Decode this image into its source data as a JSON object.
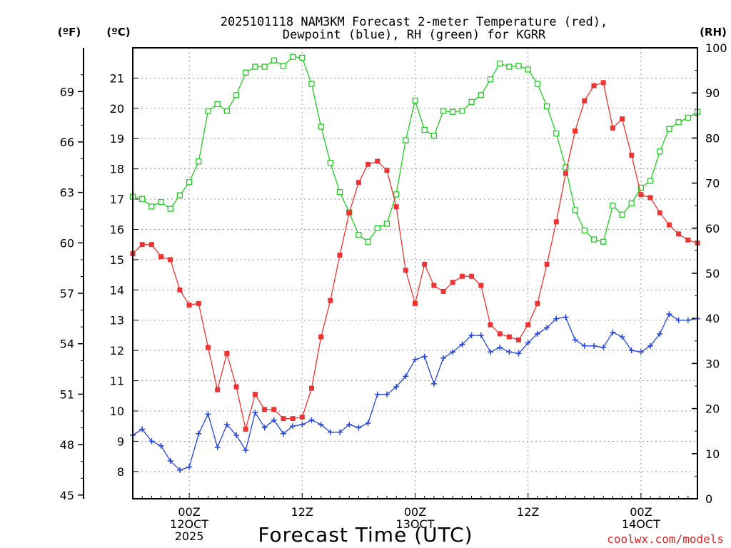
{
  "chart_data": {
    "type": "line",
    "title": [
      "2025101118 NAM3KM Forecast 2-meter Temperature (red),",
      "Dewpoint (blue), RH (green) for KGRR"
    ],
    "xlabel": "Forecast Time (UTC)",
    "credit": "coolwx.com/models",
    "units": {
      "fahrenheit": "(ºF)",
      "celsius": "(ºC)",
      "rh": "(RH)"
    },
    "colors": {
      "temperature": "#ee3333",
      "dewpoint": "#2244dd",
      "rh": "#22cc22",
      "credit": "#dd2222"
    },
    "x_range_hours": [
      0,
      60
    ],
    "x_ticks": [
      {
        "hour": 6,
        "lines": [
          "00Z",
          "12OCT",
          "2025"
        ]
      },
      {
        "hour": 18,
        "lines": [
          "12Z"
        ]
      },
      {
        "hour": 30,
        "lines": [
          "00Z",
          "13OCT"
        ]
      },
      {
        "hour": 42,
        "lines": [
          "12Z"
        ]
      },
      {
        "hour": 54,
        "lines": [
          "00Z",
          "14OCT"
        ]
      }
    ],
    "celsius_range": [
      7.1,
      22.0
    ],
    "celsius_ticks": [
      8,
      9,
      10,
      11,
      12,
      13,
      14,
      15,
      16,
      17,
      18,
      19,
      20,
      21
    ],
    "fahrenheit_ticks": [
      45,
      48,
      51,
      54,
      57,
      60,
      63,
      66,
      69
    ],
    "rh_range": [
      0,
      100
    ],
    "rh_ticks": [
      0,
      10,
      20,
      30,
      40,
      50,
      60,
      70,
      80,
      90,
      100
    ],
    "series": [
      {
        "name": "Temperature",
        "axis": "celsius",
        "marker": "filled-square",
        "color": "#ee3333",
        "x": [
          0,
          1,
          2,
          3,
          4,
          5,
          6,
          7,
          8,
          9,
          10,
          11,
          12,
          13,
          14,
          15,
          16,
          17,
          18,
          19,
          20,
          21,
          22,
          23,
          24,
          25,
          26,
          27,
          28,
          29,
          30,
          31,
          32,
          33,
          34,
          35,
          36,
          37,
          38,
          39,
          40,
          41,
          42,
          43,
          44,
          45,
          46,
          47,
          48,
          49,
          50,
          51,
          52,
          53,
          54,
          55,
          56,
          57,
          58,
          59,
          60
        ],
        "values": [
          15.2,
          15.5,
          15.5,
          15.1,
          15.0,
          14.0,
          13.5,
          13.55,
          12.1,
          10.7,
          11.9,
          10.8,
          9.4,
          10.55,
          10.05,
          10.05,
          9.75,
          9.75,
          9.8,
          10.75,
          12.45,
          13.65,
          15.15,
          16.55,
          17.55,
          18.15,
          18.25,
          17.95,
          16.75,
          14.65,
          13.55,
          14.85,
          14.15,
          13.95,
          14.25,
          14.45,
          14.45,
          14.15,
          12.85,
          12.55,
          12.45,
          12.35,
          12.85,
          13.55,
          14.85,
          16.25,
          17.85,
          19.25,
          20.25,
          20.75,
          20.85,
          19.35,
          19.65,
          18.45,
          17.15,
          17.05,
          16.55,
          16.15,
          15.85,
          15.65,
          15.55
        ]
      },
      {
        "name": "Dewpoint",
        "axis": "celsius",
        "marker": "plus",
        "color": "#2244dd",
        "x": [
          0,
          1,
          2,
          3,
          4,
          5,
          6,
          7,
          8,
          9,
          10,
          11,
          12,
          13,
          14,
          15,
          16,
          17,
          18,
          19,
          20,
          21,
          22,
          23,
          24,
          25,
          26,
          27,
          28,
          29,
          30,
          31,
          32,
          33,
          34,
          35,
          36,
          37,
          38,
          39,
          40,
          41,
          42,
          43,
          44,
          45,
          46,
          47,
          48,
          49,
          50,
          51,
          52,
          53,
          54,
          55,
          56,
          57,
          58,
          59,
          60
        ],
        "values": [
          9.2,
          9.4,
          9.0,
          8.85,
          8.35,
          8.05,
          8.15,
          9.25,
          9.9,
          8.8,
          9.55,
          9.2,
          8.7,
          9.95,
          9.45,
          9.7,
          9.25,
          9.5,
          9.55,
          9.7,
          9.55,
          9.3,
          9.3,
          9.55,
          9.45,
          9.6,
          10.55,
          10.55,
          10.8,
          11.15,
          11.7,
          11.8,
          10.9,
          11.75,
          11.95,
          12.2,
          12.5,
          12.5,
          11.95,
          12.1,
          11.95,
          11.9,
          12.25,
          12.55,
          12.75,
          13.05,
          13.1,
          12.35,
          12.15,
          12.15,
          12.1,
          12.6,
          12.45,
          12.0,
          11.95,
          12.15,
          12.55,
          13.2,
          13.0,
          13.0,
          13.05
        ]
      },
      {
        "name": "RH",
        "axis": "rh",
        "marker": "open-square",
        "color": "#22cc22",
        "x": [
          0,
          1,
          2,
          3,
          4,
          5,
          6,
          7,
          8,
          9,
          10,
          11,
          12,
          13,
          14,
          15,
          16,
          17,
          18,
          19,
          20,
          21,
          22,
          23,
          24,
          25,
          26,
          27,
          28,
          29,
          30,
          31,
          32,
          33,
          34,
          35,
          36,
          37,
          38,
          39,
          40,
          41,
          42,
          43,
          44,
          45,
          46,
          47,
          48,
          49,
          50,
          51,
          52,
          53,
          54,
          55,
          56,
          57,
          58,
          59,
          60
        ],
        "values": [
          67.0,
          66.5,
          64.8,
          65.8,
          64.3,
          67.3,
          70.2,
          74.8,
          86.0,
          87.5,
          86.0,
          89.5,
          94.5,
          95.8,
          95.8,
          97.2,
          96.0,
          98.0,
          97.8,
          92.0,
          82.5,
          74.5,
          68.0,
          63.5,
          58.5,
          57.0,
          60.0,
          61.0,
          67.5,
          79.5,
          88.3,
          81.8,
          80.5,
          86.0,
          85.8,
          86.0,
          88.0,
          89.5,
          93.0,
          96.5,
          95.8,
          96.0,
          95.2,
          92.0,
          87.0,
          81.0,
          73.5,
          64.0,
          59.5,
          57.5,
          57.0,
          65.0,
          63.0,
          65.5,
          69.0,
          70.5,
          77.0,
          82.0,
          83.5,
          84.5,
          85.8
        ]
      }
    ]
  }
}
